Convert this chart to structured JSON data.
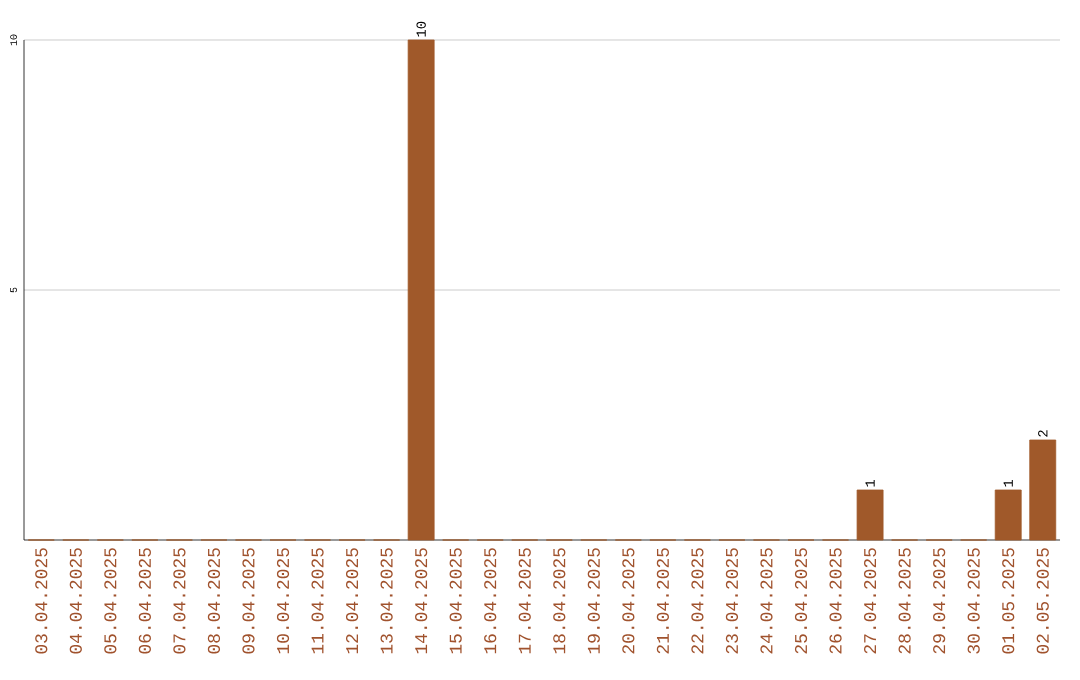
{
  "chart_data": {
    "type": "bar",
    "categories": [
      "03.04.2025",
      "04.04.2025",
      "05.04.2025",
      "06.04.2025",
      "07.04.2025",
      "08.04.2025",
      "09.04.2025",
      "10.04.2025",
      "11.04.2025",
      "12.04.2025",
      "13.04.2025",
      "14.04.2025",
      "15.04.2025",
      "16.04.2025",
      "17.04.2025",
      "18.04.2025",
      "19.04.2025",
      "20.04.2025",
      "21.04.2025",
      "22.04.2025",
      "23.04.2025",
      "24.04.2025",
      "25.04.2025",
      "26.04.2025",
      "27.04.2025",
      "28.04.2025",
      "29.04.2025",
      "30.04.2025",
      "01.05.2025",
      "02.05.2025"
    ],
    "values": [
      0,
      0,
      0,
      0,
      0,
      0,
      0,
      0,
      0,
      0,
      0,
      10,
      0,
      0,
      0,
      0,
      0,
      0,
      0,
      0,
      0,
      0,
      0,
      0,
      1,
      0,
      0,
      0,
      1,
      2
    ],
    "value_labels": [
      null,
      null,
      null,
      null,
      null,
      null,
      null,
      null,
      null,
      null,
      null,
      "10",
      null,
      null,
      null,
      null,
      null,
      null,
      null,
      null,
      null,
      null,
      null,
      null,
      "1",
      null,
      null,
      null,
      "1",
      "2"
    ],
    "color": "#a0592a",
    "ylim": [
      0,
      10
    ],
    "yticks": [
      5,
      10
    ],
    "grid": "y"
  }
}
